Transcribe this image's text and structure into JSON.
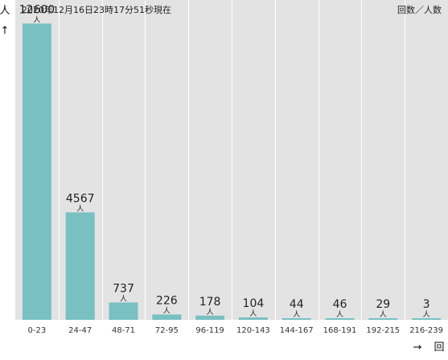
{
  "header": {
    "timestamp": "2020年12月16日23時17分51秒現在",
    "legend": "回数／人数"
  },
  "axis": {
    "y_unit": "人",
    "y_arrow": "↑",
    "x_arrow": "→",
    "x_unit": "回"
  },
  "colors": {
    "bar": "#78c0c2",
    "plot_background": "#e3e3e3",
    "grid": "#ffffff"
  },
  "chart_data": {
    "type": "bar",
    "categories": [
      "0-23",
      "24-47",
      "48-71",
      "72-95",
      "96-119",
      "120-143",
      "144-167",
      "168-191",
      "192-215",
      "216-239"
    ],
    "values": [
      12600,
      4567,
      737,
      226,
      178,
      104,
      44,
      46,
      29,
      3
    ],
    "value_unit": "人",
    "title": "",
    "xlabel": "回",
    "ylabel": "人",
    "ylim": [
      0,
      13600
    ],
    "grid": true,
    "legend": "top-right"
  }
}
